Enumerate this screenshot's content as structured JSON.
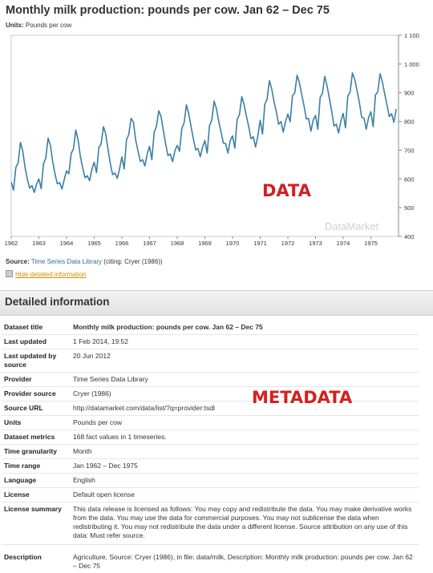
{
  "chart_data": {
    "type": "line",
    "title": "Monthly milk production: pounds per cow. Jan 62 – Dec 75",
    "units_label": "Units:",
    "units_value": "Pounds per cow",
    "x_tick_labels": [
      "1962",
      "1963",
      "1964",
      "1965",
      "1966",
      "1967",
      "1968",
      "1969",
      "1970",
      "1971",
      "1972",
      "1973",
      "1974",
      "1975"
    ],
    "y_tick_labels": [
      "1 100",
      "1 000",
      "900",
      "800",
      "700",
      "600",
      "500",
      "400"
    ],
    "y_ticks": [
      1100,
      1000,
      900,
      800,
      700,
      600,
      500,
      400
    ],
    "ylim": [
      400,
      1100
    ],
    "xlim": [
      1962,
      1976
    ],
    "series": [
      {
        "color": "#3a7fa6",
        "monthly_values": [
          589,
          561,
          640,
          656,
          727,
          697,
          640,
          599,
          568,
          577,
          553,
          582,
          600,
          566,
          653,
          673,
          742,
          716,
          660,
          617,
          583,
          587,
          565,
          598,
          628,
          618,
          688,
          705,
          770,
          736,
          678,
          639,
          604,
          611,
          594,
          634,
          658,
          622,
          709,
          722,
          782,
          756,
          702,
          653,
          615,
          621,
          602,
          635,
          677,
          635,
          736,
          755,
          811,
          798,
          735,
          697,
          661,
          667,
          645,
          688,
          713,
          667,
          762,
          784,
          837,
          817,
          767,
          722,
          681,
          687,
          660,
          698,
          717,
          696,
          775,
          796,
          858,
          826,
          783,
          740,
          701,
          706,
          677,
          711,
          734,
          690,
          785,
          805,
          871,
          845,
          801,
          764,
          725,
          723,
          690,
          734,
          750,
          707,
          807,
          824,
          886,
          859,
          819,
          783,
          740,
          747,
          711,
          751,
          804,
          756,
          860,
          878,
          942,
          913,
          869,
          834,
          790,
          800,
          763,
          800,
          826,
          799,
          890,
          900,
          961,
          935,
          894,
          855,
          809,
          810,
          766,
          805,
          821,
          773,
          883,
          898,
          957,
          924,
          881,
          837,
          784,
          791,
          760,
          802,
          828,
          778,
          889,
          902,
          969,
          947,
          908,
          867,
          815,
          812,
          773,
          813,
          834,
          782,
          892,
          903,
          966,
          937,
          896,
          858,
          817,
          827,
          797,
          843
        ]
      }
    ],
    "watermark": "DataMarket"
  },
  "source": {
    "label": "Source:",
    "text": "Time Series Data Library",
    "citation": "(citing: Cryer (1986))"
  },
  "hide_details_link": "Hide detailed information",
  "details_heading": "Detailed information",
  "metadata": [
    {
      "key": "Dataset title",
      "value": "Monthly milk production: pounds per cow. Jan 62 – Dec 75",
      "row": "r-title",
      "style": ""
    },
    {
      "key": "Last updated",
      "value": "1 Feb 2014, 19:52",
      "row": "",
      "style": ""
    },
    {
      "key": "Last updated by source",
      "value": "20 Jun 2012",
      "row": "r-lastsrc",
      "style": ""
    },
    {
      "key": "Provider",
      "value": "Time Series Data Library",
      "row": "",
      "style": "link-blue"
    },
    {
      "key": "Provider source",
      "value": "Cryer (1986)",
      "row": "",
      "style": ""
    },
    {
      "key": "Source URL",
      "value": "http://datamarket.com/data/list/?q=provider:tsdl",
      "row": "",
      "style": "link-gray"
    },
    {
      "key": "Units",
      "value": "Pounds per cow",
      "row": "",
      "style": ""
    },
    {
      "key": "Dataset metrics",
      "value": "168 fact values in 1 timeseries.",
      "row": "",
      "style": ""
    },
    {
      "key": "Time granularity",
      "value": "Month",
      "row": "",
      "style": ""
    },
    {
      "key": "Time range",
      "value": "Jan 1962 – Dec 1975",
      "row": "",
      "style": ""
    },
    {
      "key": "Language",
      "value": "English",
      "row": "",
      "style": ""
    },
    {
      "key": "License",
      "value": "Default open license",
      "row": "",
      "style": "link-blue"
    },
    {
      "key": "License summary",
      "value": "This data release is licensed as follows: You may copy and redistribute the data. You may make derivative works from the data. You may use the data for commercial purposes. You may not sublicense the data when redistributing it. You may not redistribute the data under a different license. Source attribution on any use of this data: Must refer source.",
      "row": "r-license-summary",
      "style": ""
    },
    {
      "key": "Description",
      "value": "Agriculture, Source: Cryer (1986), in file: data/milk, Description: Monthly milk production: pounds per cow. Jan 62 – Dec 75",
      "row": "r-description",
      "style": ""
    }
  ],
  "overlays": {
    "data_label": "DATA",
    "metadata_label": "METADATA"
  }
}
